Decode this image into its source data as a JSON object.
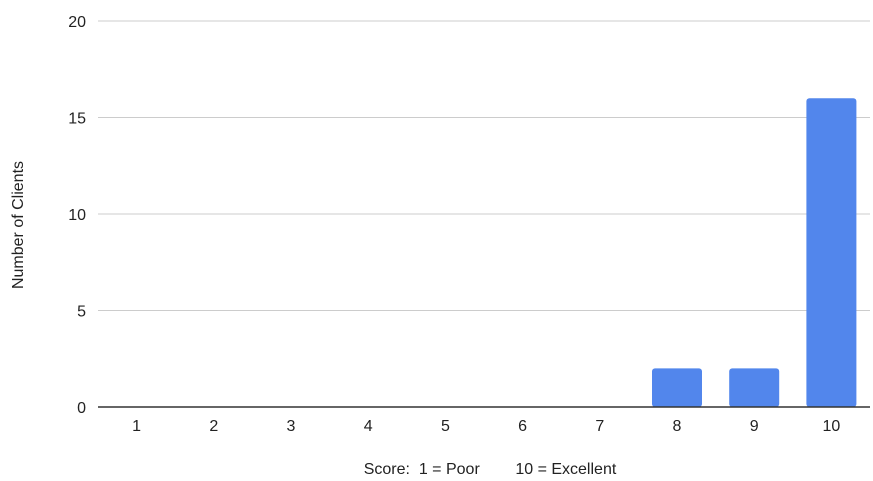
{
  "chart_data": {
    "type": "bar",
    "title": "",
    "xlabel": "Score:  1 = Poor        10 = Excellent",
    "ylabel": "Number of Clients",
    "categories": [
      "1",
      "2",
      "3",
      "4",
      "5",
      "6",
      "7",
      "8",
      "9",
      "10"
    ],
    "values": [
      0,
      0,
      0,
      0,
      0,
      0,
      0,
      2,
      2,
      16
    ],
    "ylim": [
      0,
      20
    ],
    "yticks": [
      "0",
      "5",
      "10",
      "15",
      "20"
    ],
    "grid": true,
    "legend": "none",
    "colors": {
      "bar": "#5286ec",
      "grid": "#cccccc",
      "axis": "#333333",
      "text": "#222222"
    }
  }
}
